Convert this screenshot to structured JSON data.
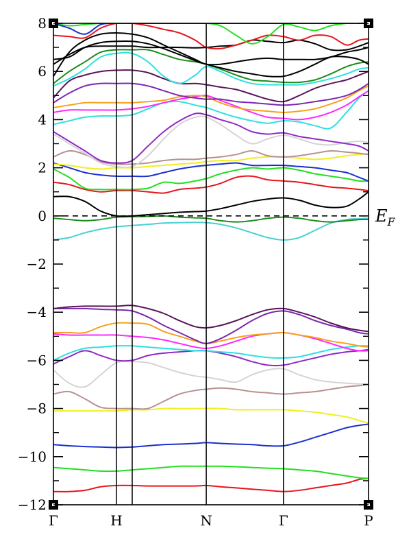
{
  "chart_data": {
    "type": "line",
    "title": "",
    "xlabel": "",
    "ylabel": "",
    "ylim": [
      -12,
      8
    ],
    "yticks": [
      8,
      6,
      4,
      2,
      0,
      -2,
      -4,
      -6,
      -8,
      -10,
      -12
    ],
    "ytick_labels": [
      "8",
      "6",
      "4",
      "2",
      "0",
      "−2",
      "−4",
      "−6",
      "−8",
      "−10",
      "−12"
    ],
    "kpoints": [
      {
        "label": "Γ",
        "pos": 0
      },
      {
        "label": "H",
        "pos": 0.2
      },
      {
        "label": "N",
        "pos": 0.485
      },
      {
        "label": "Γ",
        "pos": 0.73
      },
      {
        "label": "P",
        "pos": 1
      }
    ],
    "extra_vlines": [
      0.25
    ],
    "fermi_level": 0,
    "fermi_label": {
      "main": "E",
      "sub": "F"
    },
    "x": [
      0,
      0.05,
      0.1,
      0.15,
      0.2,
      0.25,
      0.3,
      0.35,
      0.4,
      0.45,
      0.485,
      0.53,
      0.58,
      0.63,
      0.68,
      0.73,
      0.78,
      0.83,
      0.88,
      0.93,
      0.97,
      1.0
    ],
    "series": [
      {
        "color": "#e8141c",
        "values": [
          -11.45,
          -11.45,
          -11.4,
          -11.25,
          -11.2,
          -11.2,
          -11.22,
          -11.22,
          -11.22,
          -11.22,
          -11.2,
          -11.25,
          -11.3,
          -11.35,
          -11.4,
          -11.45,
          -11.4,
          -11.3,
          -11.2,
          -11.1,
          -10.95,
          -10.9
        ]
      },
      {
        "color": "#22e01e",
        "values": [
          -10.45,
          -10.5,
          -10.55,
          -10.6,
          -10.6,
          -10.55,
          -10.5,
          -10.45,
          -10.4,
          -10.4,
          -10.4,
          -10.4,
          -10.42,
          -10.45,
          -10.48,
          -10.5,
          -10.55,
          -10.6,
          -10.7,
          -10.8,
          -10.88,
          -10.9
        ]
      },
      {
        "color": "#1a2fd0",
        "values": [
          -9.5,
          -9.55,
          -9.58,
          -9.6,
          -9.62,
          -9.6,
          -9.55,
          -9.5,
          -9.48,
          -9.45,
          -9.42,
          -9.45,
          -9.48,
          -9.5,
          -9.55,
          -9.55,
          -9.4,
          -9.2,
          -9.0,
          -8.8,
          -8.7,
          -8.65
        ]
      },
      {
        "color": "#f1ee1c",
        "values": [
          -8.1,
          -8.1,
          -8.1,
          -8.1,
          -8.1,
          -8.05,
          -8.05,
          -8.0,
          -8.0,
          -8.0,
          -8.0,
          -8.0,
          -8.05,
          -8.05,
          -8.05,
          -8.05,
          -8.1,
          -8.15,
          -8.25,
          -8.35,
          -8.5,
          -8.6
        ]
      },
      {
        "color": "#b89090",
        "values": [
          -7.4,
          -7.3,
          -7.6,
          -7.95,
          -8.0,
          -8.0,
          -8.0,
          -7.7,
          -7.4,
          -7.25,
          -7.2,
          -7.15,
          -7.2,
          -7.3,
          -7.35,
          -7.4,
          -7.35,
          -7.3,
          -7.2,
          -7.1,
          -7.05,
          -7.0
        ]
      },
      {
        "color": "#d4d4d4",
        "values": [
          -6.4,
          -6.95,
          -7.1,
          -6.6,
          -6.1,
          -6.05,
          -6.1,
          -6.3,
          -6.5,
          -6.65,
          -6.7,
          -6.8,
          -6.9,
          -6.6,
          -6.4,
          -6.35,
          -6.6,
          -6.8,
          -6.9,
          -6.95,
          -6.98,
          -7.0
        ]
      },
      {
        "color": "#9128c8",
        "values": [
          -6.15,
          -5.85,
          -5.6,
          -5.8,
          -6.0,
          -6.0,
          -5.8,
          -5.7,
          -5.65,
          -5.6,
          -5.6,
          -5.7,
          -5.85,
          -6.05,
          -6.2,
          -6.2,
          -6.05,
          -5.9,
          -5.75,
          -5.65,
          -5.6,
          -5.55
        ]
      },
      {
        "color": "#2ce0e0",
        "values": [
          -6.0,
          -5.7,
          -5.5,
          -5.45,
          -5.4,
          -5.4,
          -5.45,
          -5.5,
          -5.55,
          -5.6,
          -5.6,
          -5.65,
          -5.7,
          -5.8,
          -5.88,
          -5.9,
          -5.85,
          -5.7,
          -5.55,
          -5.45,
          -5.4,
          -5.4
        ]
      },
      {
        "color": "#ff28ff",
        "values": [
          -4.9,
          -4.95,
          -4.95,
          -4.95,
          -4.95,
          -5.0,
          -5.05,
          -5.15,
          -5.3,
          -5.45,
          -5.5,
          -5.4,
          -5.2,
          -5.0,
          -4.9,
          -4.85,
          -4.95,
          -5.1,
          -5.3,
          -5.5,
          -5.6,
          -5.6
        ]
      },
      {
        "color": "#f5a21c",
        "values": [
          -4.85,
          -4.85,
          -4.85,
          -4.6,
          -4.45,
          -4.45,
          -4.5,
          -4.8,
          -5.0,
          -5.2,
          -5.3,
          -5.2,
          -5.05,
          -4.95,
          -4.9,
          -4.85,
          -4.95,
          -5.05,
          -5.2,
          -5.3,
          -5.4,
          -5.45
        ]
      },
      {
        "color": "#7a28b0",
        "values": [
          -3.85,
          -3.85,
          -3.85,
          -3.88,
          -3.9,
          -3.95,
          -4.2,
          -4.55,
          -4.85,
          -5.15,
          -5.3,
          -5.1,
          -4.75,
          -4.35,
          -4.05,
          -3.95,
          -4.1,
          -4.35,
          -4.55,
          -4.7,
          -4.85,
          -4.9
        ]
      },
      {
        "color": "#5a1458",
        "values": [
          -3.85,
          -3.78,
          -3.75,
          -3.75,
          -3.75,
          -3.72,
          -3.85,
          -4.05,
          -4.35,
          -4.6,
          -4.65,
          -4.55,
          -4.35,
          -4.1,
          -3.9,
          -3.85,
          -4.0,
          -4.2,
          -4.45,
          -4.65,
          -4.75,
          -4.8
        ]
      },
      {
        "color": "#48d0d0",
        "values": [
          -1.0,
          -0.9,
          -0.7,
          -0.55,
          -0.45,
          -0.4,
          -0.35,
          -0.3,
          -0.28,
          -0.27,
          -0.28,
          -0.35,
          -0.5,
          -0.7,
          -0.9,
          -1.0,
          -0.9,
          -0.6,
          -0.3,
          -0.15,
          -0.12,
          -0.1
        ]
      },
      {
        "color": "#1c8c1c",
        "values": [
          -0.1,
          -0.15,
          -0.2,
          -0.15,
          -0.05,
          -0.03,
          -0.02,
          0.0,
          -0.05,
          -0.08,
          -0.1,
          -0.2,
          -0.25,
          -0.2,
          -0.1,
          -0.05,
          -0.1,
          -0.2,
          -0.25,
          -0.2,
          -0.15,
          -0.15
        ]
      },
      {
        "color": "#000000",
        "values": [
          0.8,
          0.8,
          0.6,
          0.2,
          0.0,
          0.0,
          0.05,
          0.1,
          0.15,
          0.18,
          0.2,
          0.3,
          0.45,
          0.6,
          0.7,
          0.75,
          0.65,
          0.45,
          0.35,
          0.4,
          0.7,
          1.0
        ]
      },
      {
        "color": "#e8141c",
        "values": [
          1.4,
          1.3,
          1.1,
          1.0,
          1.05,
          1.05,
          1.0,
          0.95,
          1.1,
          1.15,
          1.2,
          1.35,
          1.6,
          1.65,
          1.5,
          1.45,
          1.4,
          1.3,
          1.2,
          1.15,
          1.1,
          1.05
        ]
      },
      {
        "color": "#22e01e",
        "values": [
          1.95,
          1.6,
          1.15,
          1.1,
          1.1,
          1.1,
          1.15,
          1.4,
          1.35,
          1.45,
          1.55,
          1.75,
          1.9,
          2.0,
          1.95,
          2.0,
          1.9,
          1.75,
          1.65,
          1.55,
          1.45,
          1.45
        ]
      },
      {
        "color": "#1a2fd0",
        "values": [
          2.2,
          2.0,
          1.8,
          1.7,
          1.65,
          1.65,
          1.65,
          1.8,
          1.95,
          2.05,
          2.1,
          2.15,
          2.2,
          2.1,
          2.1,
          2.1,
          2.05,
          2.0,
          1.9,
          1.8,
          1.6,
          1.45
        ]
      },
      {
        "color": "#f1ee1c",
        "values": [
          2.15,
          2.1,
          2.0,
          1.95,
          2.0,
          2.0,
          2.05,
          2.1,
          2.15,
          2.2,
          2.25,
          2.3,
          2.3,
          2.4,
          2.45,
          2.45,
          2.4,
          2.35,
          2.4,
          2.5,
          2.55,
          2.6
        ]
      },
      {
        "color": "#b89090",
        "values": [
          2.45,
          2.7,
          2.55,
          2.25,
          2.15,
          2.15,
          2.2,
          2.3,
          2.35,
          2.35,
          2.4,
          2.45,
          2.55,
          2.7,
          2.5,
          2.45,
          2.5,
          2.6,
          2.7,
          2.65,
          2.6,
          2.55
        ]
      },
      {
        "color": "#d4d4d4",
        "values": [
          3.4,
          3.0,
          2.6,
          2.2,
          2.05,
          2.05,
          2.5,
          3.2,
          3.8,
          4.1,
          4.1,
          3.8,
          3.35,
          3.0,
          3.2,
          3.35,
          3.2,
          3.0,
          2.95,
          3.05,
          3.1,
          3.05
        ]
      },
      {
        "color": "#9128c8",
        "values": [
          3.5,
          3.1,
          2.7,
          2.3,
          2.2,
          2.3,
          2.9,
          3.5,
          3.95,
          4.25,
          4.2,
          4.0,
          3.8,
          3.5,
          3.4,
          3.45,
          3.3,
          3.2,
          3.1,
          3.0,
          2.9,
          2.7
        ]
      },
      {
        "color": "#2ce0e0",
        "values": [
          3.8,
          3.95,
          4.1,
          4.15,
          4.15,
          4.2,
          4.45,
          4.7,
          4.75,
          4.6,
          4.5,
          4.3,
          4.1,
          3.95,
          3.85,
          3.95,
          3.9,
          3.75,
          3.65,
          4.3,
          4.9,
          5.2
        ]
      },
      {
        "color": "#ff28ff",
        "values": [
          4.3,
          4.4,
          4.4,
          4.4,
          4.4,
          4.45,
          4.55,
          4.7,
          4.85,
          4.95,
          5.0,
          4.8,
          4.55,
          4.3,
          4.1,
          4.05,
          4.0,
          4.1,
          4.3,
          4.6,
          4.95,
          5.2
        ]
      },
      {
        "color": "#f5a21c",
        "values": [
          4.5,
          4.6,
          4.7,
          4.7,
          4.7,
          4.7,
          4.75,
          4.8,
          4.95,
          5.0,
          4.95,
          4.7,
          4.5,
          4.4,
          4.35,
          4.3,
          4.35,
          4.45,
          4.65,
          4.9,
          5.2,
          5.4
        ]
      },
      {
        "color": "#7a28b0",
        "values": [
          4.7,
          5.1,
          5.4,
          5.5,
          5.5,
          5.5,
          5.4,
          5.2,
          5.0,
          4.9,
          4.85,
          4.85,
          4.75,
          4.7,
          4.65,
          4.6,
          4.65,
          4.75,
          4.85,
          5.0,
          5.25,
          5.5
        ]
      },
      {
        "color": "#5a1458",
        "values": [
          4.9,
          5.6,
          5.85,
          6.0,
          6.05,
          6.05,
          5.95,
          5.7,
          5.5,
          5.5,
          5.45,
          5.35,
          5.25,
          5.05,
          4.85,
          4.75,
          5.0,
          5.3,
          5.5,
          5.65,
          5.85,
          6.0
        ]
      },
      {
        "color": "#2ce0e0",
        "values": [
          5.4,
          5.7,
          6.1,
          6.6,
          6.75,
          6.75,
          6.4,
          5.8,
          5.5,
          5.85,
          6.2,
          6.0,
          5.7,
          5.5,
          5.45,
          5.45,
          5.45,
          5.55,
          5.7,
          5.9,
          6.1,
          6.15
        ]
      },
      {
        "color": "#1c8c1c",
        "values": [
          5.5,
          6.0,
          6.4,
          6.8,
          6.9,
          6.9,
          6.9,
          6.7,
          6.5,
          6.4,
          6.3,
          6.1,
          5.85,
          5.65,
          5.6,
          5.55,
          5.55,
          5.65,
          5.9,
          6.2,
          6.35,
          6.4
        ]
      },
      {
        "color": "#000000",
        "values": [
          6.5,
          6.6,
          7.0,
          7.2,
          7.25,
          7.25,
          7.15,
          6.95,
          6.7,
          6.45,
          6.3,
          6.15,
          6.0,
          5.9,
          5.8,
          5.8,
          6.0,
          6.3,
          6.6,
          6.6,
          6.5,
          6.3
        ]
      },
      {
        "color": "#000000",
        "values": [
          5.8,
          6.8,
          7.3,
          7.55,
          7.6,
          7.55,
          7.4,
          7.1,
          6.8,
          6.5,
          6.3,
          6.3,
          6.4,
          6.5,
          6.55,
          6.5,
          6.5,
          6.5,
          6.6,
          6.8,
          6.9,
          7.0
        ]
      },
      {
        "color": "#000000",
        "values": [
          6.3,
          6.7,
          7.0,
          7.05,
          7.05,
          7.05,
          7.0,
          7.0,
          7.0,
          6.98,
          7.0,
          7.05,
          7.1,
          7.3,
          7.25,
          7.2,
          7.3,
          7.15,
          6.9,
          6.9,
          7.05,
          7.2
        ]
      },
      {
        "color": "#e8141c",
        "values": [
          7.5,
          7.45,
          7.4,
          7.8,
          8.0,
          8.0,
          7.9,
          7.75,
          7.6,
          7.3,
          7.0,
          6.95,
          7.1,
          7.3,
          7.5,
          7.45,
          7.3,
          7.5,
          7.45,
          7.1,
          7.3,
          7.35
        ]
      },
      {
        "color": "#22e01e",
        "values": [
          8.0,
          7.9,
          7.95,
          8.0,
          8.0,
          8.0,
          8.0,
          8.0,
          8.0,
          8.0,
          8.0,
          7.9,
          7.5,
          7.15,
          7.45,
          7.95,
          7.85,
          7.7,
          7.9,
          8.0,
          8.0,
          8.0
        ]
      },
      {
        "color": "#1a2fd0",
        "values": [
          8.0,
          7.8,
          7.55,
          7.95,
          8.0,
          8.0,
          8.0,
          8.0,
          8.0,
          8.0,
          8.0,
          8.0,
          8.0,
          8.0,
          8.0,
          8.0,
          8.0,
          8.0,
          8.0,
          8.0,
          8.0,
          8.0
        ]
      }
    ]
  }
}
